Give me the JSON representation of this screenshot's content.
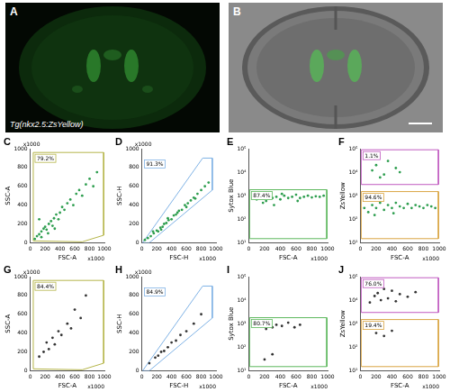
{
  "figure": {
    "panels": [
      {
        "letter": "A",
        "caption": "Tg(nkx2.5:ZsYellow)"
      },
      {
        "letter": "B"
      }
    ]
  },
  "chart_data": [
    {
      "letter": "C",
      "type": "scatter",
      "x_label": "FSC-A",
      "y_label": "SSC-A",
      "x_scale_label": "x1000",
      "y_scale_label": "x1000",
      "xlim": [
        0,
        1000
      ],
      "xticks": [
        0,
        200,
        400,
        600,
        800,
        1000
      ],
      "ylim": [
        0,
        1000
      ],
      "yticks": [
        0,
        200,
        400,
        600,
        800,
        1000
      ],
      "events": {
        "color": "#2e9e4f",
        "x": [
          60,
          90,
          120,
          150,
          180,
          200,
          220,
          250,
          280,
          300,
          320,
          350,
          380,
          400,
          430,
          460,
          500,
          540,
          580,
          620,
          660,
          700,
          750,
          800,
          850,
          900,
          150,
          240,
          330,
          120
        ],
        "y": [
          40,
          70,
          90,
          120,
          150,
          170,
          140,
          200,
          230,
          180,
          260,
          300,
          250,
          320,
          380,
          350,
          420,
          460,
          400,
          520,
          560,
          500,
          620,
          680,
          600,
          750,
          60,
          100,
          150,
          250
        ]
      },
      "gates": [
        {
          "label": "79.2%",
          "color": "#b5b54a",
          "x": [
            40,
            40,
            990,
            990,
            700
          ],
          "y": [
            20,
            960,
            960,
            80,
            10
          ]
        }
      ]
    },
    {
      "letter": "D",
      "type": "scatter",
      "x_label": "FSC-H",
      "y_label": "SSC-H",
      "x_scale_label": "x1000",
      "y_scale_label": "x1000",
      "xlim": [
        0,
        1000
      ],
      "xticks": [
        0,
        200,
        400,
        600,
        800,
        1000
      ],
      "ylim": [
        0,
        1000
      ],
      "yticks": [
        0,
        200,
        400,
        600,
        800,
        1000
      ],
      "events": {
        "color": "#2e9e4f",
        "x": [
          40,
          80,
          120,
          160,
          200,
          220,
          250,
          280,
          300,
          330,
          360,
          400,
          430,
          460,
          500,
          540,
          580,
          620,
          660,
          700,
          750,
          800,
          850,
          900,
          150,
          260,
          350,
          480,
          600,
          720
        ],
        "y": [
          30,
          50,
          70,
          100,
          130,
          120,
          160,
          170,
          200,
          210,
          240,
          250,
          290,
          300,
          340,
          350,
          400,
          420,
          450,
          480,
          520,
          560,
          600,
          640,
          120,
          140,
          260,
          320,
          380,
          470
        ]
      },
      "gates": [
        {
          "label": "91.3%",
          "color": "#7fb2e5",
          "x": [
            10,
            820,
            950,
            950,
            100
          ],
          "y": [
            0,
            900,
            900,
            560,
            0
          ]
        }
      ]
    },
    {
      "letter": "E",
      "type": "scatter",
      "log": "y",
      "x_label": "FSC-A",
      "y_label": "Sytox Blue",
      "x_scale_label": "x1000",
      "xlim": [
        0,
        1000
      ],
      "xticks": [
        0,
        200,
        400,
        600,
        800,
        1000
      ],
      "ylim": [
        10,
        100000
      ],
      "yticks": [
        {
          "value": 10,
          "label": "10¹"
        },
        {
          "value": 100,
          "label": "10²"
        },
        {
          "value": 1000,
          "label": "10³"
        },
        {
          "value": 10000,
          "label": "10⁴"
        },
        {
          "value": 100000,
          "label": "10⁵"
        }
      ],
      "events": {
        "color": "#2e9e4f",
        "x": [
          50,
          100,
          150,
          200,
          220,
          260,
          300,
          350,
          400,
          450,
          500,
          550,
          600,
          650,
          700,
          750,
          800,
          850,
          900,
          950,
          180,
          280,
          420,
          620,
          320
        ],
        "y": [
          800,
          700,
          900,
          1000,
          600,
          1100,
          800,
          900,
          700,
          1000,
          800,
          900,
          1100,
          800,
          900,
          1000,
          850,
          950,
          900,
          1000,
          500,
          1300,
          1200,
          600,
          400
        ]
      },
      "gates": [
        {
          "label": "87.4%",
          "color": "#5cb85c",
          "x": [
            10,
            10,
            990,
            990
          ],
          "y": [
            15,
            1800,
            1800,
            15
          ]
        }
      ]
    },
    {
      "letter": "F",
      "type": "scatter",
      "log": "y",
      "x_label": "FSC-A",
      "y_label": "ZsYellow",
      "x_scale_label": "x1000",
      "xlim": [
        0,
        1000
      ],
      "xticks": [
        0,
        200,
        400,
        600,
        800,
        1000
      ],
      "ylim": [
        10,
        100000
      ],
      "yticks": [
        {
          "value": 10,
          "label": "10¹"
        },
        {
          "value": 100,
          "label": "10²"
        },
        {
          "value": 1000,
          "label": "10³"
        },
        {
          "value": 10000,
          "label": "10⁴"
        },
        {
          "value": 100000,
          "label": "10⁵"
        }
      ],
      "events": {
        "color": "#2e9e4f",
        "x": [
          50,
          100,
          150,
          200,
          250,
          300,
          350,
          400,
          450,
          500,
          550,
          600,
          650,
          700,
          750,
          800,
          850,
          900,
          950,
          180,
          280,
          420,
          150,
          200,
          300,
          350,
          450,
          250,
          500
        ],
        "y": [
          300,
          200,
          400,
          300,
          500,
          250,
          400,
          300,
          500,
          350,
          300,
          450,
          300,
          400,
          350,
          300,
          400,
          350,
          300,
          150,
          700,
          180,
          12000,
          20000,
          8000,
          30000,
          15000,
          6000,
          10000
        ]
      },
      "gates": [
        {
          "label": "1.1%",
          "color": "#c05ac0",
          "x": [
            10,
            10,
            990,
            990
          ],
          "y": [
            3000,
            90000,
            90000,
            3000
          ]
        },
        {
          "label": "94.6%",
          "color": "#d9a441",
          "x": [
            10,
            10,
            990,
            990
          ],
          "y": [
            15,
            1500,
            1500,
            15
          ]
        }
      ]
    },
    {
      "letter": "G",
      "type": "scatter",
      "x_label": "FSC-A",
      "y_label": "SSC-A",
      "x_scale_label": "x1000",
      "y_scale_label": "x1000",
      "xlim": [
        0,
        1000
      ],
      "xticks": [
        0,
        200,
        400,
        600,
        800,
        1000
      ],
      "ylim": [
        0,
        1000
      ],
      "yticks": [
        0,
        200,
        400,
        600,
        800,
        1000
      ],
      "events": {
        "color": "#333333",
        "x": [
          180,
          220,
          250,
          300,
          330,
          380,
          420,
          500,
          550,
          600,
          680,
          120,
          750
        ],
        "y": [
          200,
          300,
          230,
          350,
          280,
          420,
          380,
          500,
          450,
          650,
          560,
          150,
          800
        ]
      },
      "gates": [
        {
          "label": "84.4%",
          "color": "#b5b54a",
          "x": [
            40,
            40,
            990,
            990,
            700
          ],
          "y": [
            20,
            960,
            960,
            80,
            10
          ]
        }
      ]
    },
    {
      "letter": "H",
      "type": "scatter",
      "x_label": "FSC-H",
      "y_label": "SSC-H",
      "x_scale_label": "x1000",
      "y_scale_label": "x1000",
      "xlim": [
        0,
        1000
      ],
      "xticks": [
        0,
        200,
        400,
        600,
        800,
        1000
      ],
      "ylim": [
        0,
        1000
      ],
      "yticks": [
        0,
        200,
        400,
        600,
        800,
        1000
      ],
      "events": {
        "color": "#333333",
        "x": [
          100,
          180,
          220,
          260,
          300,
          350,
          400,
          460,
          520,
          600,
          700,
          800
        ],
        "y": [
          80,
          140,
          160,
          200,
          210,
          250,
          300,
          320,
          380,
          420,
          500,
          600
        ]
      },
      "gates": [
        {
          "label": "84.9%",
          "color": "#7fb2e5",
          "x": [
            10,
            820,
            950,
            950,
            100
          ],
          "y": [
            0,
            900,
            900,
            560,
            0
          ]
        }
      ]
    },
    {
      "letter": "I",
      "type": "scatter",
      "log": "y",
      "x_label": "FSC-A",
      "y_label": "Sytox Blue",
      "x_scale_label": "x1000",
      "xlim": [
        0,
        1000
      ],
      "xticks": [
        0,
        200,
        400,
        600,
        800,
        1000
      ],
      "ylim": [
        10,
        100000
      ],
      "yticks": [
        {
          "value": 10,
          "label": "10¹"
        },
        {
          "value": 100,
          "label": "10²"
        },
        {
          "value": 1000,
          "label": "10³"
        },
        {
          "value": 10000,
          "label": "10⁴"
        },
        {
          "value": 100000,
          "label": "10⁵"
        }
      ],
      "events": {
        "color": "#333333",
        "x": [
          120,
          180,
          220,
          260,
          300,
          350,
          420,
          500,
          580,
          650,
          200,
          300
        ],
        "y": [
          800,
          900,
          600,
          1000,
          700,
          900,
          800,
          1100,
          700,
          900,
          30,
          50
        ]
      },
      "gates": [
        {
          "label": "80.7%",
          "color": "#5cb85c",
          "x": [
            10,
            10,
            990,
            990
          ],
          "y": [
            15,
            1800,
            1800,
            15
          ]
        }
      ]
    },
    {
      "letter": "J",
      "type": "scatter",
      "log": "y",
      "x_label": "FSC-A",
      "y_label": "ZsYellow",
      "x_scale_label": "x1000",
      "xlim": [
        0,
        1000
      ],
      "xticks": [
        0,
        200,
        400,
        600,
        800,
        1000
      ],
      "ylim": [
        10,
        100000
      ],
      "yticks": [
        {
          "value": 10,
          "label": "10¹"
        },
        {
          "value": 100,
          "label": "10²"
        },
        {
          "value": 1000,
          "label": "10³"
        },
        {
          "value": 10000,
          "label": "10⁴"
        },
        {
          "value": 100000,
          "label": "10⁵"
        }
      ],
      "events": {
        "color": "#333333",
        "x": [
          120,
          180,
          220,
          260,
          300,
          350,
          400,
          450,
          500,
          600,
          700,
          200,
          300,
          400
        ],
        "y": [
          8000,
          15000,
          20000,
          10000,
          30000,
          12000,
          25000,
          9000,
          18000,
          14000,
          22000,
          400,
          300,
          500
        ]
      },
      "gates": [
        {
          "label": "76.0%",
          "color": "#c05ac0",
          "x": [
            10,
            10,
            990,
            990
          ],
          "y": [
            3000,
            90000,
            90000,
            3000
          ]
        },
        {
          "label": "19.4%",
          "color": "#d9a441",
          "x": [
            10,
            10,
            990,
            990
          ],
          "y": [
            15,
            1500,
            1500,
            15
          ]
        }
      ]
    }
  ]
}
